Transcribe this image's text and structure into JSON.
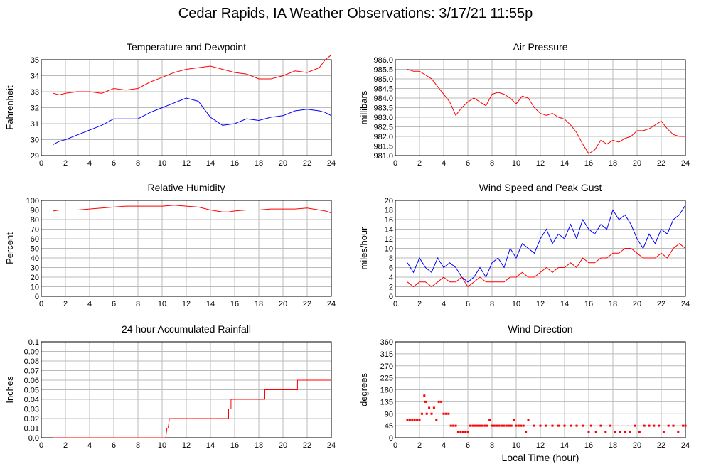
{
  "page": {
    "title": "Cedar Rapids, IA Weather Observations: 3/17/21 11:55p"
  },
  "colors": {
    "primary": "#ff0000",
    "secondary": "#0000ff",
    "grid": "#bbbbbb",
    "frame": "#000000"
  },
  "chart_data": [
    {
      "id": "temp",
      "type": "line",
      "title": "Temperature and Dewpoint",
      "xlabel": "",
      "ylabel": "Fahrenheit",
      "xlim": [
        0,
        24
      ],
      "ylim": [
        29,
        35
      ],
      "xticks": [
        0,
        2,
        4,
        6,
        8,
        10,
        12,
        14,
        16,
        18,
        20,
        22,
        24
      ],
      "yticks": [
        29,
        30,
        31,
        32,
        33,
        34,
        35
      ],
      "series": [
        {
          "color": "#ff0000",
          "x": [
            1,
            1.5,
            2,
            3,
            4,
            5,
            6,
            7,
            8,
            9,
            10,
            11,
            12,
            13,
            14,
            15,
            16,
            17,
            18,
            19,
            20,
            21,
            22,
            23,
            23.5,
            24
          ],
          "y": [
            32.9,
            32.8,
            32.9,
            33.0,
            33.0,
            32.9,
            33.2,
            33.1,
            33.2,
            33.6,
            33.9,
            34.2,
            34.4,
            34.5,
            34.6,
            34.4,
            34.2,
            34.1,
            33.8,
            33.8,
            34.0,
            34.3,
            34.2,
            34.5,
            35.0,
            35.3
          ]
        },
        {
          "color": "#0000ff",
          "x": [
            1,
            1.5,
            2,
            3,
            4,
            5,
            6,
            7,
            8,
            9,
            10,
            11,
            12,
            13,
            13.5,
            14,
            15,
            16,
            17,
            18,
            19,
            20,
            21,
            22,
            23,
            23.5,
            24
          ],
          "y": [
            29.7,
            29.9,
            30.0,
            30.3,
            30.6,
            30.9,
            31.3,
            31.3,
            31.3,
            31.7,
            32.0,
            32.3,
            32.6,
            32.4,
            31.9,
            31.4,
            30.9,
            31.0,
            31.3,
            31.2,
            31.4,
            31.5,
            31.8,
            31.9,
            31.8,
            31.7,
            31.5
          ]
        }
      ]
    },
    {
      "id": "pressure",
      "type": "line",
      "title": "Air Pressure",
      "xlabel": "",
      "ylabel": "millibars",
      "xlim": [
        0,
        24
      ],
      "ylim": [
        981.0,
        986.0
      ],
      "xticks": [
        0,
        2,
        4,
        6,
        8,
        10,
        12,
        14,
        16,
        18,
        20,
        22,
        24
      ],
      "yticks": [
        981.0,
        981.5,
        982.0,
        982.5,
        983.0,
        983.5,
        984.0,
        984.5,
        985.0,
        985.5,
        986.0
      ],
      "ytick_labels": [
        "981.0",
        "981.5",
        "982.0",
        "982.5",
        "983.0",
        "983.5",
        "984.0",
        "984.5",
        "985.0",
        "985.5",
        "986.0"
      ],
      "series": [
        {
          "color": "#ff0000",
          "x": [
            1,
            1.5,
            2,
            2.5,
            3,
            3.5,
            4,
            4.5,
            5,
            5.5,
            6,
            6.5,
            7,
            7.5,
            8,
            8.5,
            9,
            9.5,
            10,
            10.5,
            11,
            11.5,
            12,
            12.5,
            13,
            13.5,
            14,
            14.5,
            15,
            15.5,
            16,
            16.5,
            17,
            17.5,
            18,
            18.5,
            19,
            19.5,
            20,
            20.5,
            21,
            21.5,
            22,
            22.5,
            23,
            23.5,
            24
          ],
          "y": [
            985.5,
            985.4,
            985.4,
            985.2,
            985.0,
            984.6,
            984.2,
            983.8,
            983.1,
            983.5,
            983.8,
            984.0,
            983.8,
            983.6,
            984.2,
            984.3,
            984.2,
            984.0,
            983.7,
            984.1,
            984.0,
            983.5,
            983.2,
            983.1,
            983.2,
            983.0,
            982.9,
            982.6,
            982.2,
            981.6,
            981.1,
            981.3,
            981.8,
            981.6,
            981.8,
            981.7,
            981.9,
            982.0,
            982.3,
            982.3,
            982.4,
            982.6,
            982.8,
            982.4,
            982.1,
            982.0,
            982.0
          ]
        }
      ]
    },
    {
      "id": "rh",
      "type": "line",
      "title": "Relative Humidity",
      "xlabel": "",
      "ylabel": "Percent",
      "xlim": [
        0,
        24
      ],
      "ylim": [
        0,
        100
      ],
      "xticks": [
        0,
        2,
        4,
        6,
        8,
        10,
        12,
        14,
        16,
        18,
        20,
        22,
        24
      ],
      "yticks": [
        0,
        10,
        20,
        30,
        40,
        50,
        60,
        70,
        80,
        90,
        100
      ],
      "series": [
        {
          "color": "#ff0000",
          "x": [
            1,
            1.5,
            2,
            3,
            4,
            5,
            6,
            7,
            8,
            9,
            10,
            11,
            12,
            13,
            14,
            15,
            15.5,
            16,
            17,
            18,
            19,
            20,
            21,
            22,
            23,
            23.5,
            24
          ],
          "y": [
            89,
            90,
            90,
            90,
            91,
            92,
            93,
            94,
            94,
            94,
            94,
            95,
            94,
            93,
            90,
            88,
            88,
            89,
            90,
            90,
            91,
            91,
            91,
            92,
            90,
            89,
            87
          ]
        }
      ]
    },
    {
      "id": "wind",
      "type": "line",
      "title": "Wind Speed and Peak Gust",
      "xlabel": "",
      "ylabel": "miles/hour",
      "xlim": [
        0,
        24
      ],
      "ylim": [
        0,
        20
      ],
      "xticks": [
        0,
        2,
        4,
        6,
        8,
        10,
        12,
        14,
        16,
        18,
        20,
        22,
        24
      ],
      "yticks": [
        0,
        2,
        4,
        6,
        8,
        10,
        12,
        14,
        16,
        18,
        20
      ],
      "series": [
        {
          "color": "#0000ff",
          "x": [
            1,
            1.5,
            2,
            2.5,
            3,
            3.5,
            4,
            4.5,
            5,
            5.5,
            6,
            6.5,
            7,
            7.5,
            8,
            8.5,
            9,
            9.5,
            10,
            10.5,
            11,
            11.5,
            12,
            12.5,
            13,
            13.5,
            14,
            14.5,
            15,
            15.5,
            16,
            16.5,
            17,
            17.5,
            18,
            18.5,
            19,
            19.5,
            20,
            20.5,
            21,
            21.5,
            22,
            22.5,
            23,
            23.5,
            24
          ],
          "y": [
            7,
            5,
            8,
            6,
            5,
            8,
            6,
            7,
            6,
            4,
            3,
            4,
            6,
            4,
            7,
            8,
            6,
            10,
            8,
            11,
            10,
            9,
            12,
            14,
            11,
            13,
            12,
            15,
            12,
            16,
            14,
            13,
            15,
            14,
            18,
            16,
            17,
            15,
            12,
            10,
            13,
            11,
            14,
            13,
            16,
            17,
            19
          ]
        },
        {
          "color": "#ff0000",
          "x": [
            1,
            1.5,
            2,
            2.5,
            3,
            3.5,
            4,
            4.5,
            5,
            5.5,
            6,
            6.5,
            7,
            7.5,
            8,
            8.5,
            9,
            9.5,
            10,
            10.5,
            11,
            11.5,
            12,
            12.5,
            13,
            13.5,
            14,
            14.5,
            15,
            15.5,
            16,
            16.5,
            17,
            17.5,
            18,
            18.5,
            19,
            19.5,
            20,
            20.5,
            21,
            21.5,
            22,
            22.5,
            23,
            23.5,
            24
          ],
          "y": [
            3,
            2,
            3,
            3,
            2,
            3,
            4,
            3,
            3,
            4,
            2,
            3,
            4,
            3,
            3,
            3,
            3,
            4,
            4,
            5,
            4,
            4,
            5,
            6,
            5,
            6,
            6,
            7,
            6,
            8,
            7,
            7,
            8,
            8,
            9,
            9,
            10,
            10,
            9,
            8,
            8,
            8,
            9,
            8,
            10,
            11,
            10
          ]
        }
      ]
    },
    {
      "id": "rain",
      "type": "line",
      "title": "24 hour Accumulated Rainfall",
      "xlabel": "",
      "ylabel": "Inches",
      "xlim": [
        0,
        24
      ],
      "ylim": [
        0,
        0.1
      ],
      "xticks": [
        0,
        2,
        4,
        6,
        8,
        10,
        12,
        14,
        16,
        18,
        20,
        22,
        24
      ],
      "yticks": [
        0,
        0.01,
        0.02,
        0.03,
        0.04,
        0.05,
        0.06,
        0.07,
        0.08,
        0.09,
        0.1
      ],
      "ytick_labels": [
        "0.0",
        "0.01",
        "0.02",
        "0.03",
        "0.04",
        "0.05",
        "0.06",
        "0.07",
        "0.08",
        "0.09",
        "0.1"
      ],
      "series": [
        {
          "color": "#ff0000",
          "x": [
            1,
            10.3,
            10.4,
            10.5,
            10.6,
            15.5,
            15.5,
            15.7,
            15.7,
            18.5,
            18.5,
            21.2,
            21.2,
            24
          ],
          "y": [
            0,
            0,
            0.01,
            0.01,
            0.02,
            0.02,
            0.03,
            0.03,
            0.04,
            0.04,
            0.05,
            0.05,
            0.06,
            0.06
          ]
        }
      ]
    },
    {
      "id": "direction",
      "type": "scatter",
      "title": "Wind Direction",
      "xlabel": "Local Time (hour)",
      "ylabel": "degrees",
      "xlim": [
        0,
        24
      ],
      "ylim": [
        0,
        360
      ],
      "xticks": [
        0,
        2,
        4,
        6,
        8,
        10,
        12,
        14,
        16,
        18,
        20,
        22,
        24
      ],
      "yticks": [
        0,
        45,
        90,
        135,
        180,
        225,
        270,
        315,
        360
      ],
      "series": [
        {
          "color": "#ff0000",
          "x": [
            1,
            1.2,
            1.4,
            1.6,
            1.8,
            2,
            2.2,
            2.4,
            2.5,
            2.6,
            2.8,
            3,
            3.2,
            3.4,
            3.6,
            3.8,
            4,
            4.2,
            4.4,
            4.6,
            4.8,
            5,
            5.2,
            5.4,
            5.6,
            5.8,
            6,
            6.2,
            6.4,
            6.6,
            6.8,
            7,
            7.2,
            7.4,
            7.6,
            7.8,
            8,
            8.2,
            8.4,
            8.6,
            8.8,
            9,
            9.2,
            9.4,
            9.6,
            9.8,
            10,
            10.2,
            10.4,
            10.6,
            10.8,
            11,
            11.5,
            12,
            12.5,
            13,
            13.5,
            14,
            14.5,
            15,
            15.5,
            16,
            16.2,
            16.6,
            17,
            17.4,
            17.8,
            18.2,
            18.6,
            19,
            19.4,
            19.8,
            20.2,
            20.6,
            21,
            21.4,
            21.8,
            22.2,
            22.6,
            23,
            23.4,
            23.8,
            24
          ],
          "y": [
            68,
            68,
            68,
            68,
            68,
            68,
            90,
            158,
            135,
            90,
            112,
            90,
            112,
            68,
            135,
            135,
            90,
            90,
            90,
            45,
            45,
            45,
            22,
            22,
            22,
            22,
            22,
            45,
            45,
            45,
            45,
            45,
            45,
            45,
            45,
            68,
            45,
            45,
            45,
            45,
            45,
            45,
            45,
            45,
            45,
            68,
            45,
            45,
            45,
            45,
            22,
            68,
            45,
            45,
            45,
            45,
            45,
            45,
            45,
            45,
            45,
            22,
            45,
            22,
            45,
            22,
            45,
            22,
            22,
            22,
            22,
            45,
            22,
            45,
            45,
            45,
            45,
            22,
            45,
            45,
            22,
            45,
            45
          ]
        }
      ]
    }
  ]
}
